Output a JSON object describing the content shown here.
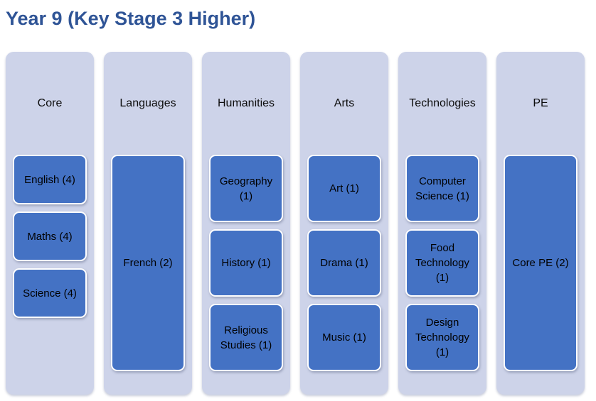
{
  "title": "Year 9 (Key Stage 3 Higher)",
  "colors": {
    "title_text": "#2F5496",
    "column_bg": "#CDD3E9",
    "box_bg": "#4472C4",
    "box_border": "#FFFFFF",
    "box_text": "#000000",
    "header_text": "#0D0D0D"
  },
  "columns": [
    {
      "header": "Core",
      "subjects": [
        "English (4)",
        "Maths (4)",
        "Science (4)"
      ]
    },
    {
      "header": "Languages",
      "subjects": [
        "French (2)"
      ]
    },
    {
      "header": "Humanities",
      "subjects": [
        "Geography (1)",
        "History (1)",
        "Religious Studies (1)"
      ]
    },
    {
      "header": "Arts",
      "subjects": [
        "Art (1)",
        "Drama (1)",
        "Music (1)"
      ]
    },
    {
      "header": "Technologies",
      "subjects": [
        "Computer Science (1)",
        "Food Technology (1)",
        "Design Technology (1)"
      ]
    },
    {
      "header": "PE",
      "subjects": [
        "Core PE (2)"
      ]
    }
  ]
}
